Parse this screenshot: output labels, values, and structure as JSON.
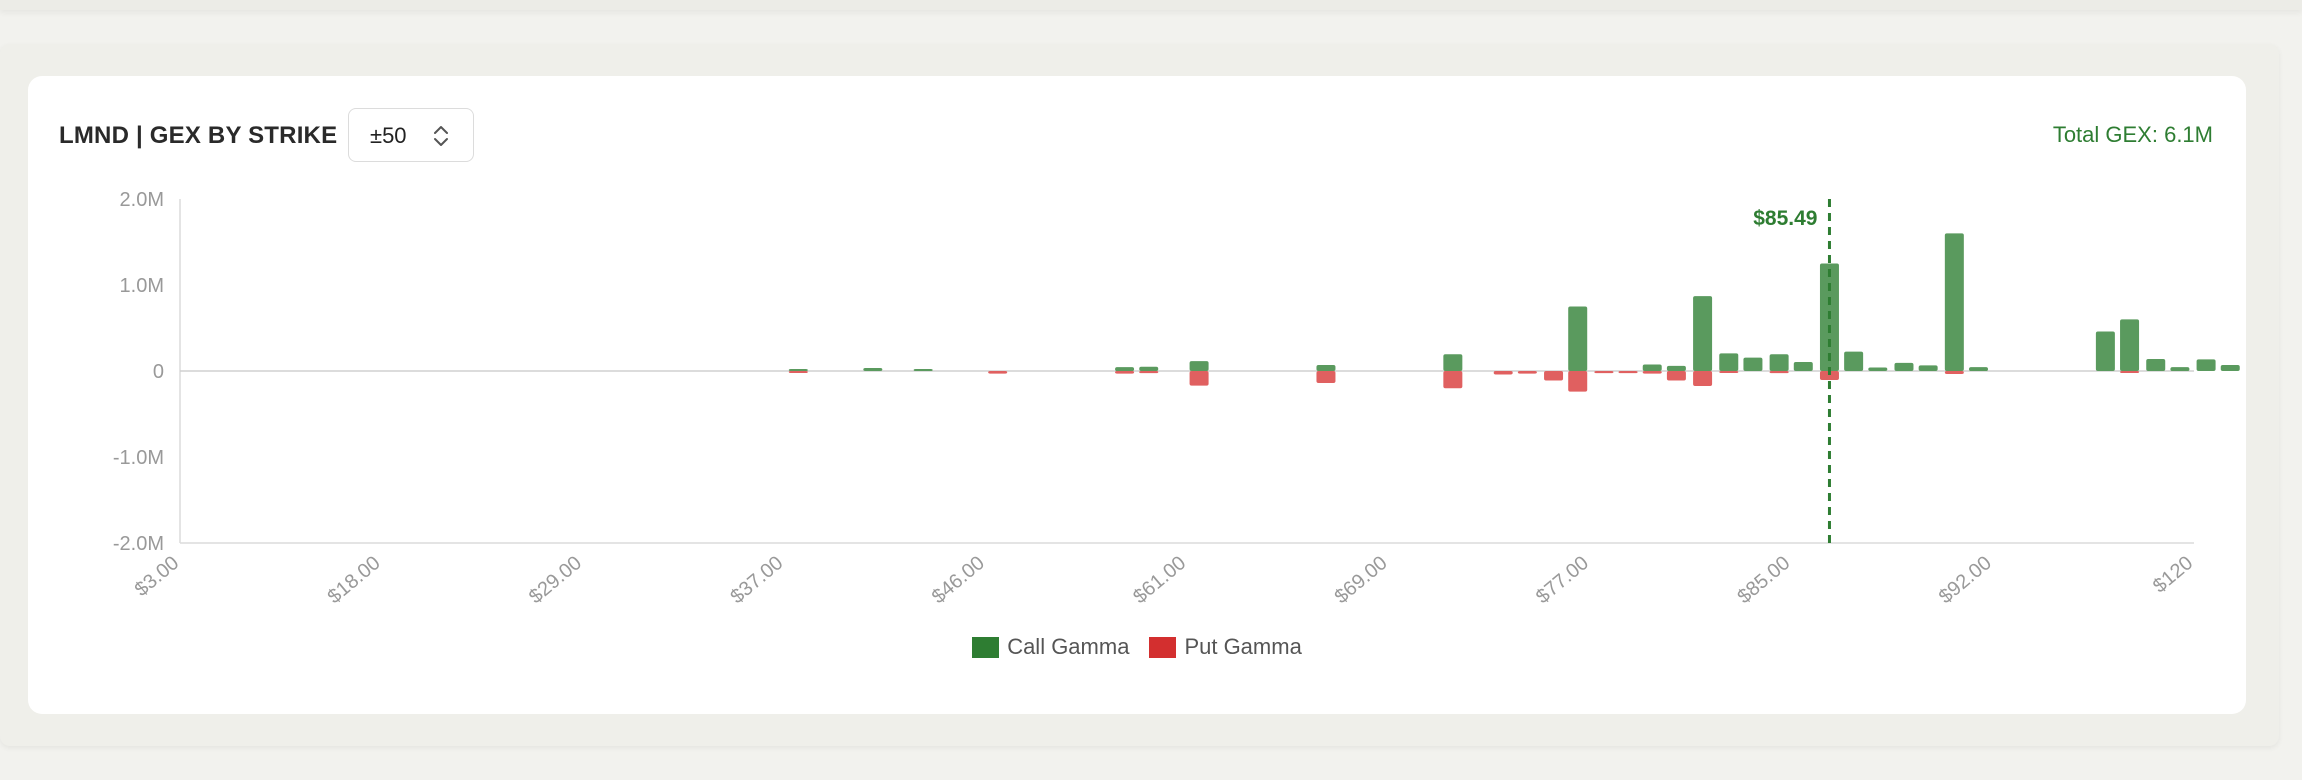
{
  "header": {
    "title": "LMND | GEX BY STRIKE",
    "range_value": "±50",
    "total_gex": "Total GEX: 6.1M"
  },
  "colors": {
    "call": "#5a9a5e",
    "put": "#e06060",
    "spot_line": "#2e7d32",
    "axis_text": "#999999",
    "zero_line": "#d0d0d0"
  },
  "icons": {
    "range_stepper": "chevron-up-down-icon"
  },
  "chart_data": {
    "type": "bar",
    "ylim": [
      -2000000,
      2000000
    ],
    "y_ticks": [
      {
        "value": 2000000,
        "label": "2.0M"
      },
      {
        "value": 1000000,
        "label": "1.0M"
      },
      {
        "value": 0,
        "label": "0"
      },
      {
        "value": -1000000,
        "label": "-1.0M"
      },
      {
        "value": -2000000,
        "label": "-2.0M"
      }
    ],
    "x_tick_labels": [
      "$3.00",
      "$18.00",
      "$29.00",
      "$37.00",
      "$46.00",
      "$61.00",
      "$69.00",
      "$77.00",
      "$85.00",
      "$92.00",
      "$120"
    ],
    "spot_price": {
      "label": "$85.49",
      "position": 0.819
    },
    "legend": [
      "Call Gamma",
      "Put Gamma"
    ],
    "series": [
      {
        "name": "Call Gamma",
        "points": [
          {
            "pos": 0.307,
            "value": 8000
          },
          {
            "pos": 0.344,
            "value": 35000
          },
          {
            "pos": 0.369,
            "value": 10000
          },
          {
            "pos": 0.469,
            "value": 45000
          },
          {
            "pos": 0.481,
            "value": 50000
          },
          {
            "pos": 0.506,
            "value": 115000
          },
          {
            "pos": 0.569,
            "value": 70000
          },
          {
            "pos": 0.632,
            "value": 195000
          },
          {
            "pos": 0.694,
            "value": 750000
          },
          {
            "pos": 0.731,
            "value": 75000
          },
          {
            "pos": 0.743,
            "value": 60000
          },
          {
            "pos": 0.756,
            "value": 870000
          },
          {
            "pos": 0.769,
            "value": 205000
          },
          {
            "pos": 0.781,
            "value": 155000
          },
          {
            "pos": 0.794,
            "value": 195000
          },
          {
            "pos": 0.806,
            "value": 105000
          },
          {
            "pos": 0.819,
            "value": 1250000
          },
          {
            "pos": 0.831,
            "value": 225000
          },
          {
            "pos": 0.843,
            "value": 40000
          },
          {
            "pos": 0.856,
            "value": 95000
          },
          {
            "pos": 0.868,
            "value": 65000
          },
          {
            "pos": 0.881,
            "value": 1600000
          },
          {
            "pos": 0.893,
            "value": 45000
          },
          {
            "pos": 0.956,
            "value": 460000
          },
          {
            "pos": 0.968,
            "value": 600000
          },
          {
            "pos": 0.981,
            "value": 140000
          },
          {
            "pos": 0.993,
            "value": 45000
          },
          {
            "pos": 1.006,
            "value": 135000
          },
          {
            "pos": 1.018,
            "value": 70000
          }
        ]
      },
      {
        "name": "Put Gamma",
        "points": [
          {
            "pos": 0.307,
            "value": -8000
          },
          {
            "pos": 0.406,
            "value": -30000
          },
          {
            "pos": 0.469,
            "value": -30000
          },
          {
            "pos": 0.481,
            "value": -25000
          },
          {
            "pos": 0.506,
            "value": -170000
          },
          {
            "pos": 0.569,
            "value": -140000
          },
          {
            "pos": 0.632,
            "value": -200000
          },
          {
            "pos": 0.657,
            "value": -40000
          },
          {
            "pos": 0.669,
            "value": -30000
          },
          {
            "pos": 0.682,
            "value": -110000
          },
          {
            "pos": 0.694,
            "value": -240000
          },
          {
            "pos": 0.707,
            "value": -25000
          },
          {
            "pos": 0.719,
            "value": -25000
          },
          {
            "pos": 0.731,
            "value": -30000
          },
          {
            "pos": 0.743,
            "value": -110000
          },
          {
            "pos": 0.756,
            "value": -175000
          },
          {
            "pos": 0.769,
            "value": -10000
          },
          {
            "pos": 0.794,
            "value": -25000
          },
          {
            "pos": 0.819,
            "value": -105000
          },
          {
            "pos": 0.881,
            "value": -35000
          },
          {
            "pos": 0.968,
            "value": -15000
          }
        ]
      }
    ]
  }
}
